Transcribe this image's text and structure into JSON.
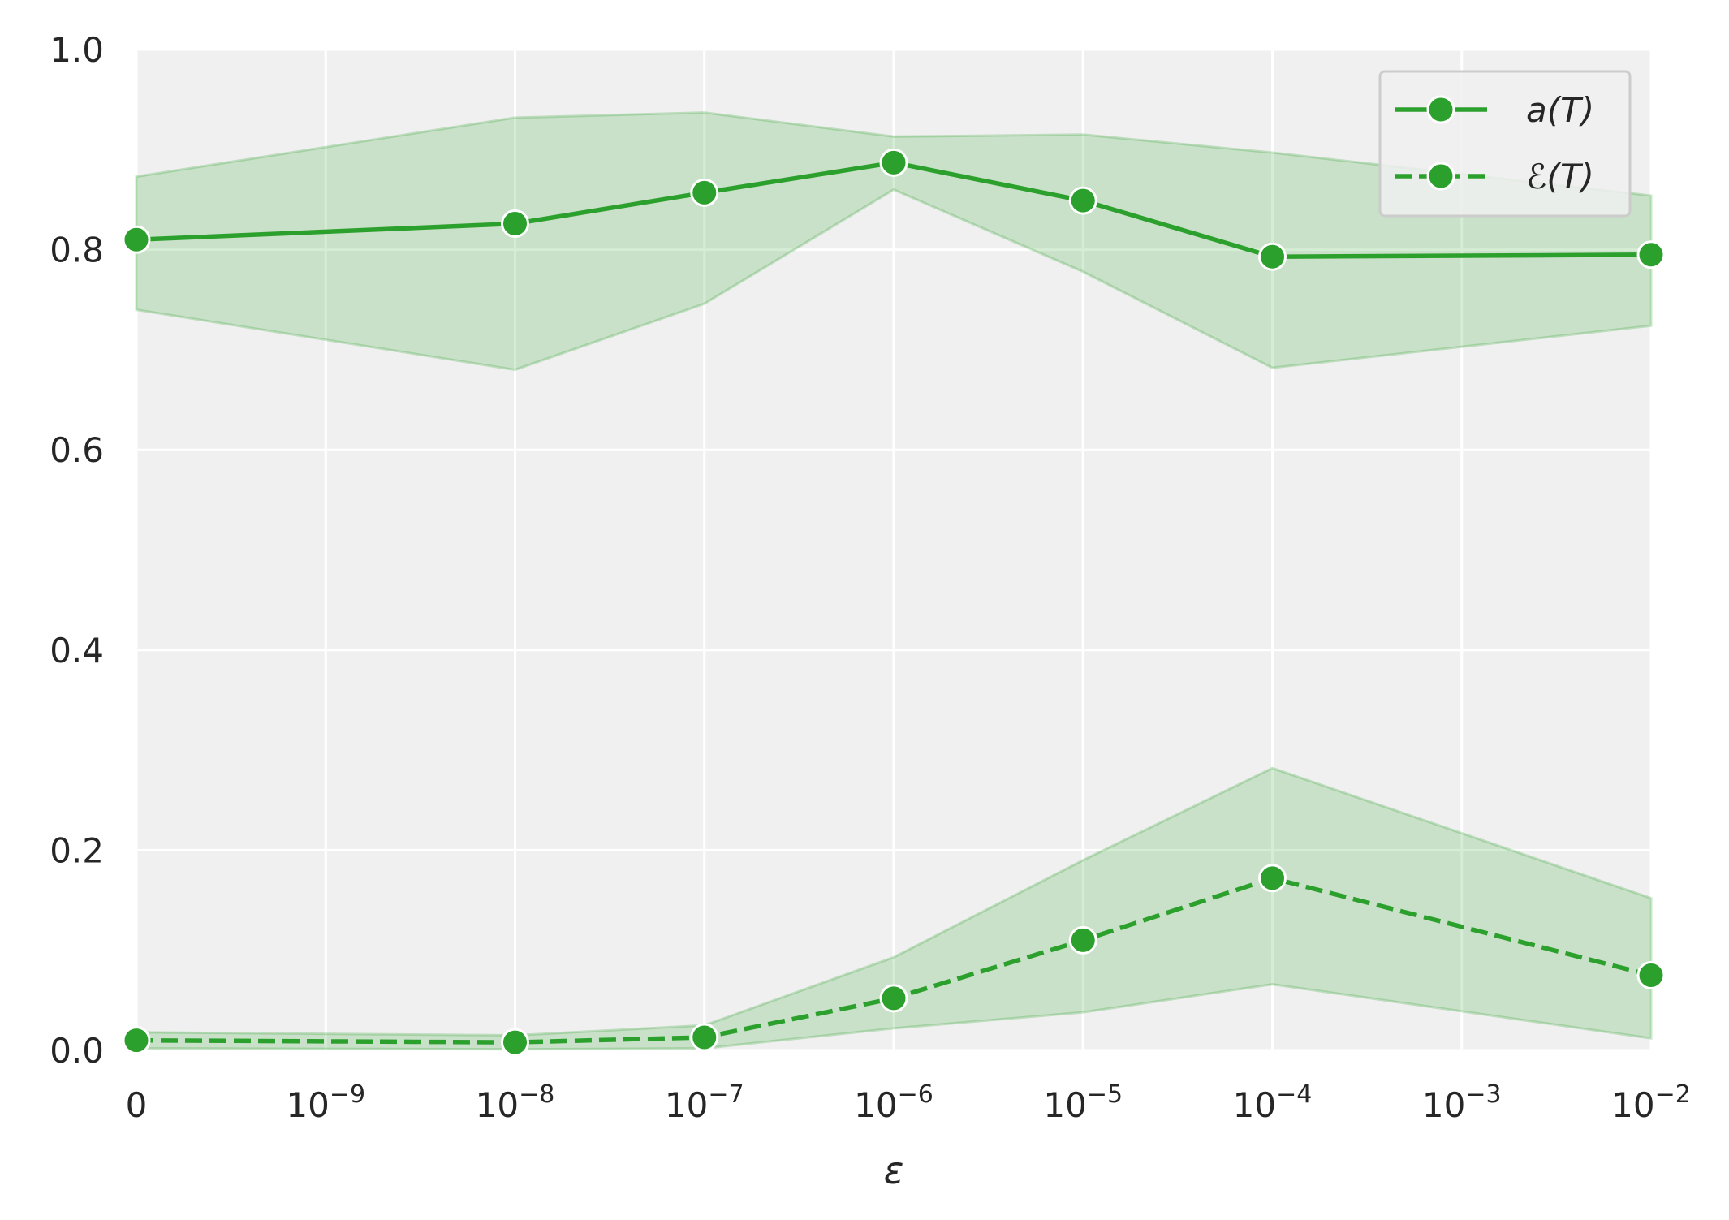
{
  "chart_data": {
    "type": "line",
    "x_tick_labels": [
      {
        "base": "0",
        "exp": ""
      },
      {
        "base": "10",
        "exp": "−9"
      },
      {
        "base": "10",
        "exp": "−8"
      },
      {
        "base": "10",
        "exp": "−7"
      },
      {
        "base": "10",
        "exp": "−6"
      },
      {
        "base": "10",
        "exp": "−5"
      },
      {
        "base": "10",
        "exp": "−4"
      },
      {
        "base": "10",
        "exp": "−3"
      },
      {
        "base": "10",
        "exp": "−2"
      }
    ],
    "y_ticks": [
      0.0,
      0.2,
      0.4,
      0.6,
      0.8,
      1.0
    ],
    "y_tick_labels": [
      "0.0",
      "0.2",
      "0.4",
      "0.6",
      "0.8",
      "1.0"
    ],
    "ylim": [
      0,
      1
    ],
    "xlabel": "ε",
    "ylabel": "",
    "title": "",
    "grid": true,
    "legend_position": "top-right",
    "colors": {
      "line": "#2ca02c",
      "band": "#2ca02c",
      "background": "#f0f0f0",
      "grid": "#ffffff"
    },
    "series": [
      {
        "name": "a(T)",
        "linestyle": "solid",
        "x": [
          0,
          1e-08,
          1e-07,
          1e-06,
          1e-05,
          0.0001,
          0.01
        ],
        "y": [
          0.81,
          0.826,
          0.857,
          0.887,
          0.849,
          0.793,
          0.795
        ],
        "y_lower": [
          0.74,
          0.68,
          0.746,
          0.86,
          0.778,
          0.682,
          0.724
        ],
        "y_upper": [
          0.873,
          0.932,
          0.937,
          0.913,
          0.915,
          0.897,
          0.854
        ]
      },
      {
        "name": "ℰ(T)",
        "linestyle": "dashed",
        "x": [
          0,
          1e-08,
          1e-07,
          1e-06,
          1e-05,
          0.0001,
          0.01
        ],
        "y": [
          0.01,
          0.008,
          0.013,
          0.052,
          0.11,
          0.172,
          0.075
        ],
        "y_lower": [
          0.002,
          0.001,
          0.002,
          0.022,
          0.038,
          0.066,
          0.012
        ],
        "y_upper": [
          0.018,
          0.015,
          0.025,
          0.093,
          0.19,
          0.282,
          0.152
        ]
      }
    ]
  }
}
